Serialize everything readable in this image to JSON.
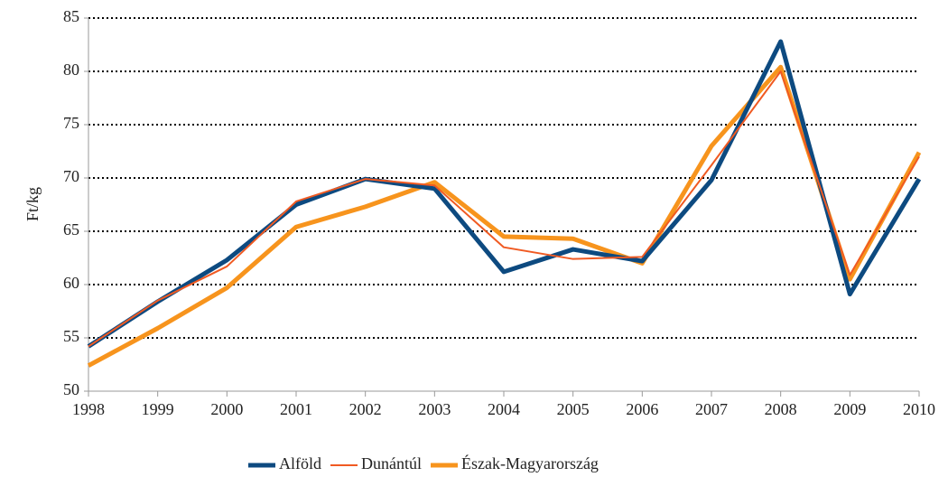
{
  "chart_data": {
    "type": "line",
    "y_label": "Ft/kg",
    "categories": [
      "1998",
      "1999",
      "2000",
      "2001",
      "2002",
      "2003",
      "2004",
      "2005",
      "2006",
      "2007",
      "2008",
      "2009",
      "2010"
    ],
    "series": [
      {
        "name": "Alföld",
        "color": "#0d4a80",
        "values": [
          54.2,
          58.4,
          62.3,
          67.5,
          69.9,
          69.0,
          61.2,
          63.3,
          62.2,
          69.8,
          82.8,
          59.1,
          69.9
        ]
      },
      {
        "name": "Dunántúl",
        "color": "#f05a22",
        "values": [
          54.2,
          58.5,
          61.7,
          67.8,
          69.9,
          69.3,
          63.5,
          62.4,
          62.6,
          71.2,
          80.0,
          60.9,
          72.0
        ]
      },
      {
        "name": "Észak-Magyarország",
        "color": "#f7941d",
        "values": [
          52.4,
          55.9,
          59.7,
          65.4,
          67.3,
          69.6,
          64.5,
          64.3,
          62.0,
          73.0,
          80.4,
          60.5,
          72.4
        ]
      }
    ],
    "ylim": [
      50,
      85
    ],
    "yticks": [
      50,
      55,
      60,
      65,
      70,
      75,
      80,
      85
    ],
    "grid": true,
    "legend": "bottom"
  }
}
